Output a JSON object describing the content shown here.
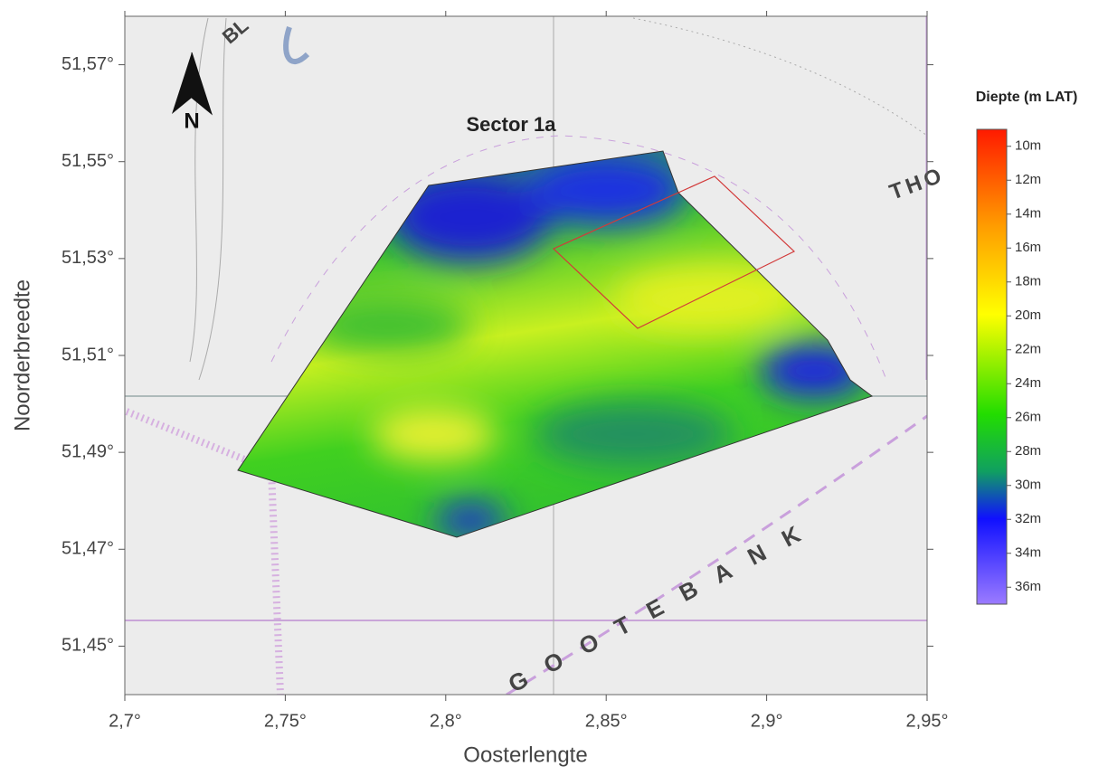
{
  "map": {
    "title": "Sector 1a",
    "north_label": "N",
    "place_labels": [
      "GOOTEBANK",
      "THO",
      "BL"
    ],
    "x_axis": {
      "label": "Oosterlengte",
      "lim": [
        2.7,
        2.95
      ],
      "ticks": [
        {
          "value": 2.7,
          "label": "2,7°"
        },
        {
          "value": 2.75,
          "label": "2,75°"
        },
        {
          "value": 2.8,
          "label": "2,8°"
        },
        {
          "value": 2.85,
          "label": "2,85°"
        },
        {
          "value": 2.9,
          "label": "2,9°"
        },
        {
          "value": 2.95,
          "label": "2,95°"
        }
      ]
    },
    "y_axis": {
      "label": "Noorderbreedte",
      "lim": [
        51.44,
        51.58
      ],
      "ticks": [
        {
          "value": 51.57,
          "label": "51,57°"
        },
        {
          "value": 51.55,
          "label": "51,55°"
        },
        {
          "value": 51.53,
          "label": "51,53°"
        },
        {
          "value": 51.51,
          "label": "51,51°"
        },
        {
          "value": 51.49,
          "label": "51,49°"
        },
        {
          "value": 51.47,
          "label": "51,47°"
        },
        {
          "value": 51.45,
          "label": "51,45°"
        }
      ]
    },
    "colorbar": {
      "title": "Diepte (m LAT)",
      "lim": [
        9,
        37
      ],
      "ticks": [
        {
          "value": 10,
          "label": "10m"
        },
        {
          "value": 12,
          "label": "12m"
        },
        {
          "value": 14,
          "label": "14m"
        },
        {
          "value": 16,
          "label": "16m"
        },
        {
          "value": 18,
          "label": "18m"
        },
        {
          "value": 20,
          "label": "20m"
        },
        {
          "value": 22,
          "label": "22m"
        },
        {
          "value": 24,
          "label": "24m"
        },
        {
          "value": 26,
          "label": "26m"
        },
        {
          "value": 28,
          "label": "28m"
        },
        {
          "value": 30,
          "label": "30m"
        },
        {
          "value": 32,
          "label": "32m"
        },
        {
          "value": 34,
          "label": "34m"
        },
        {
          "value": 36,
          "label": "36m"
        }
      ]
    }
  }
}
